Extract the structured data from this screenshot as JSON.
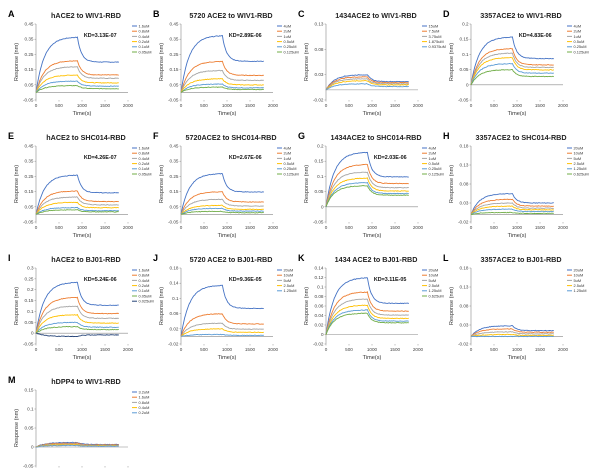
{
  "chart_data": [
    {
      "letter": "A",
      "title": "hACE2 to WIV1-RBD",
      "type": "line",
      "ylabel": "Response (nm)",
      "xlabel": "Time(s)",
      "ylim": [
        -0.05,
        0.45
      ],
      "yticks": [
        -0.05,
        0.05,
        0.15,
        0.25,
        0.35,
        0.45
      ],
      "xlim": [
        0,
        2000
      ],
      "xticks": [
        0,
        500,
        1000,
        1500,
        2000
      ],
      "kd": "KD=3.13E-07",
      "series": [
        {
          "name": "1.6uM",
          "peak": 0.365
        },
        {
          "name": "0.8uM",
          "peak": 0.21
        },
        {
          "name": "0.4uM",
          "peak": 0.17
        },
        {
          "name": "0.2uM",
          "peak": 0.115
        },
        {
          "name": "0.1uM",
          "peak": 0.075
        },
        {
          "name": "0.05uM",
          "peak": 0.045
        }
      ]
    },
    {
      "letter": "B",
      "title": "5720 ACE2 to WIV1-RBD",
      "type": "line",
      "ylabel": "Response (nm)",
      "xlabel": "Time(s)",
      "ylim": [
        -0.05,
        0.45
      ],
      "yticks": [
        -0.05,
        0.05,
        0.15,
        0.25,
        0.35,
        0.45
      ],
      "xlim": [
        0,
        2000
      ],
      "xticks": [
        0,
        500,
        1000,
        1500,
        2000
      ],
      "kd": "KD=2.89E-06",
      "series": [
        {
          "name": "4uM",
          "peak": 0.375
        },
        {
          "name": "2uM",
          "peak": 0.205
        },
        {
          "name": "1uM",
          "peak": 0.145
        },
        {
          "name": "0.5uM",
          "peak": 0.09
        },
        {
          "name": "0.25uM",
          "peak": 0.055
        },
        {
          "name": "0.125uM",
          "peak": 0.035
        }
      ]
    },
    {
      "letter": "C",
      "title": "1434ACE2 to WIV1-RBD",
      "type": "line",
      "ylabel": "Response (nm)",
      "xlabel": "Time(s)",
      "ylim": [
        -0.02,
        0.13
      ],
      "yticks": [
        -0.02,
        0.03,
        0.08,
        0.13
      ],
      "xlim": [
        0,
        2000
      ],
      "xticks": [
        0,
        500,
        1000,
        1500,
        2000
      ],
      "kd": "",
      "series": [
        {
          "name": "15uM",
          "peak": 0.03
        },
        {
          "name": "7.5uM",
          "peak": 0.026
        },
        {
          "name": "3.75uM",
          "peak": 0.022
        },
        {
          "name": "1.875uM",
          "peak": 0.018
        },
        {
          "name": "0.9375uM",
          "peak": 0.012
        }
      ]
    },
    {
      "letter": "D",
      "title": "3357ACE2 to WIV1-RBD",
      "type": "line",
      "ylabel": "Response (nm)",
      "xlabel": "Time(s)",
      "ylim": [
        -0.05,
        0.2
      ],
      "yticks": [
        -0.05,
        0,
        0.05,
        0.1,
        0.15,
        0.2
      ],
      "xlim": [
        0,
        2000
      ],
      "xticks": [
        0,
        500,
        1000,
        1500,
        2000
      ],
      "kd": "KD=4.83E-06",
      "series": [
        {
          "name": "4uM",
          "peak": 0.158
        },
        {
          "name": "2uM",
          "peak": 0.12
        },
        {
          "name": "1uM",
          "peak": 0.105
        },
        {
          "name": "0.5uM",
          "peak": 0.09
        },
        {
          "name": "0.25uM",
          "peak": 0.07
        },
        {
          "name": "0.125uM",
          "peak": 0.05
        }
      ]
    },
    {
      "letter": "E",
      "title": "hACE2 to SHC014-RBD",
      "type": "line",
      "ylabel": "Response (nm)",
      "xlabel": "Time(s)",
      "ylim": [
        -0.05,
        0.45
      ],
      "yticks": [
        -0.05,
        0.05,
        0.15,
        0.25,
        0.35,
        0.45
      ],
      "xlim": [
        0,
        2000
      ],
      "xticks": [
        0,
        500,
        1000,
        1500,
        2000
      ],
      "kd": "KD=4.26E-07",
      "series": [
        {
          "name": "1.6uM",
          "peak": 0.26
        },
        {
          "name": "0.8uM",
          "peak": 0.155
        },
        {
          "name": "0.4uM",
          "peak": 0.115
        },
        {
          "name": "0.2uM",
          "peak": 0.08
        },
        {
          "name": "0.1uM",
          "peak": 0.045
        },
        {
          "name": "0.05uM",
          "peak": 0.03
        }
      ]
    },
    {
      "letter": "F",
      "title": "5720ACE2 to SHC014-RBD",
      "type": "line",
      "ylabel": "Response (nm)",
      "xlabel": "Time(s)",
      "ylim": [
        -0.05,
        0.45
      ],
      "yticks": [
        -0.05,
        0.05,
        0.15,
        0.25,
        0.35,
        0.45
      ],
      "xlim": [
        0,
        2000
      ],
      "xticks": [
        0,
        500,
        1000,
        1500,
        2000
      ],
      "kd": "KD=2.67E-06",
      "series": [
        {
          "name": "4uM",
          "peak": 0.27
        },
        {
          "name": "2uM",
          "peak": 0.15
        },
        {
          "name": "1uM",
          "peak": 0.1
        },
        {
          "name": "0.5uM",
          "peak": 0.06
        },
        {
          "name": "0.25uM",
          "peak": 0.04
        },
        {
          "name": "0.125uM",
          "peak": 0.02
        }
      ]
    },
    {
      "letter": "G",
      "title": "1434ACE2 to SHC014-RBD",
      "type": "line",
      "ylabel": "Response (nm)",
      "xlabel": "Time(s)",
      "ylim": [
        -0.05,
        0.2
      ],
      "yticks": [
        -0.05,
        0,
        0.05,
        0.1,
        0.15,
        0.2
      ],
      "xlim": [
        0,
        2000
      ],
      "xticks": [
        0,
        500,
        1000,
        1500,
        2000
      ],
      "kd": "KD=2.03E-06",
      "series": [
        {
          "name": "4uM",
          "peak": 0.18
        },
        {
          "name": "2uM",
          "peak": 0.14
        },
        {
          "name": "1uM",
          "peak": 0.115
        },
        {
          "name": "0.5uM",
          "peak": 0.095
        },
        {
          "name": "0.25uM",
          "peak": 0.08
        },
        {
          "name": "0.125uM",
          "peak": 0.07
        }
      ]
    },
    {
      "letter": "H",
      "title": "3357ACE2 to SHC014-RBD",
      "type": "line",
      "ylabel": "Response (nm)",
      "xlabel": "Time(s)",
      "ylim": [
        -0.02,
        0.18
      ],
      "yticks": [
        -0.02,
        0.03,
        0.08,
        0.13,
        0.18
      ],
      "xlim": [
        0,
        2000
      ],
      "xticks": [
        0,
        500,
        1000,
        1500,
        2000
      ],
      "kd": "",
      "series": [
        {
          "name": "20uM",
          "peak": 0.055
        },
        {
          "name": "10uM",
          "peak": 0.04
        },
        {
          "name": "5uM",
          "peak": 0.03
        },
        {
          "name": "2.5uM",
          "peak": 0.022
        },
        {
          "name": "1.25uM",
          "peak": 0.014
        },
        {
          "name": "0.625uM",
          "peak": 0.005
        }
      ]
    },
    {
      "letter": "I",
      "title": "hACE2 to BJ01-RBD",
      "type": "line",
      "ylabel": "Response (nm)",
      "xlabel": "Time(s)",
      "ylim": [
        -0.05,
        0.3
      ],
      "yticks": [
        -0.05,
        0,
        0.05,
        0.1,
        0.15,
        0.2,
        0.25,
        0.3
      ],
      "xlim": [
        0,
        2000
      ],
      "xticks": [
        0,
        500,
        1000,
        1500,
        2000
      ],
      "kd": "KD=5.24E-06",
      "series": [
        {
          "name": "1.6uM",
          "peak": 0.235
        },
        {
          "name": "0.8uM",
          "peak": 0.165
        },
        {
          "name": "0.4uM",
          "peak": 0.125
        },
        {
          "name": "0.2uM",
          "peak": 0.085
        },
        {
          "name": "0.1uM",
          "peak": 0.05
        },
        {
          "name": "0.05uM",
          "peak": 0.03
        },
        {
          "name": "0.025uM",
          "peak": -0.015
        }
      ]
    },
    {
      "letter": "J",
      "title": "5720 ACE2 to BJ01-RBD",
      "type": "line",
      "ylabel": "Response (nm)",
      "xlabel": "Time(s)",
      "ylim": [
        -0.02,
        0.18
      ],
      "yticks": [
        -0.02,
        0.02,
        0.06,
        0.1,
        0.14,
        0.18
      ],
      "xlim": [
        0,
        2000
      ],
      "xticks": [
        0,
        500,
        1000,
        1500,
        2000
      ],
      "kd": "KD=9.36E-05",
      "series": [
        {
          "name": "20uM",
          "peak": 0.135
        },
        {
          "name": "10uM",
          "peak": 0.06
        },
        {
          "name": "5uM",
          "peak": 0.035
        },
        {
          "name": "2.5uM",
          "peak": 0.02
        },
        {
          "name": "1.25uM",
          "peak": 0.005
        }
      ]
    },
    {
      "letter": "K",
      "title": "1434 ACE2 to BJ01-RBD",
      "type": "line",
      "ylabel": "Response (nm)",
      "xlabel": "Time(s)",
      "ylim": [
        -0.02,
        0.14
      ],
      "yticks": [
        -0.02,
        0,
        0.02,
        0.04,
        0.06,
        0.08,
        0.1,
        0.12,
        0.14
      ],
      "xlim": [
        0,
        2000
      ],
      "xticks": [
        0,
        500,
        1000,
        1500,
        2000
      ],
      "kd": "KD=3.11E-05",
      "series": [
        {
          "name": "20uM",
          "peak": 0.12
        },
        {
          "name": "10uM",
          "peak": 0.09
        },
        {
          "name": "5uM",
          "peak": 0.075
        },
        {
          "name": "2.5uM",
          "peak": 0.062
        },
        {
          "name": "1.25uM",
          "peak": 0.052
        },
        {
          "name": "0.625uM",
          "peak": 0.045
        }
      ]
    },
    {
      "letter": "L",
      "title": "3357ACE2 to BJ01-RBD",
      "type": "line",
      "ylabel": "Response (nm)",
      "xlabel": "Time(s)",
      "ylim": [
        -0.02,
        0.18
      ],
      "yticks": [
        -0.02,
        0.03,
        0.08,
        0.13,
        0.18
      ],
      "xlim": [
        0,
        2000
      ],
      "xticks": [
        0,
        500,
        1000,
        1500,
        2000
      ],
      "kd": "",
      "series": [
        {
          "name": "20uM",
          "peak": 0.028
        },
        {
          "name": "10uM",
          "peak": 0.02
        },
        {
          "name": "5uM",
          "peak": 0.012
        },
        {
          "name": "2.5uM",
          "peak": 0.005
        },
        {
          "name": "1.25uM",
          "peak": 0.0
        }
      ]
    },
    {
      "letter": "M",
      "title": "hDPP4 to WIV1-RBD",
      "type": "line",
      "ylabel": "Response (nm)",
      "xlabel": "Time(s)",
      "ylim": [
        -0.05,
        0.15
      ],
      "yticks": [
        -0.05,
        0,
        0.05,
        0.1,
        0.15
      ],
      "xlim": [
        0,
        2000
      ],
      "xticks": [
        0,
        500,
        1000,
        1500,
        2000
      ],
      "kd": "",
      "series": [
        {
          "name": "3.2uM",
          "peak": 0.012
        },
        {
          "name": "1.6uM",
          "peak": 0.01
        },
        {
          "name": "0.8uM",
          "peak": 0.008
        },
        {
          "name": "0.4uM",
          "peak": 0.006
        },
        {
          "name": "0.2uM",
          "peak": 0.004
        }
      ]
    }
  ],
  "colors": [
    "#4472C4",
    "#ED7D31",
    "#A5A5A5",
    "#FFC000",
    "#5B9BD5",
    "#70AD47",
    "#264478"
  ]
}
